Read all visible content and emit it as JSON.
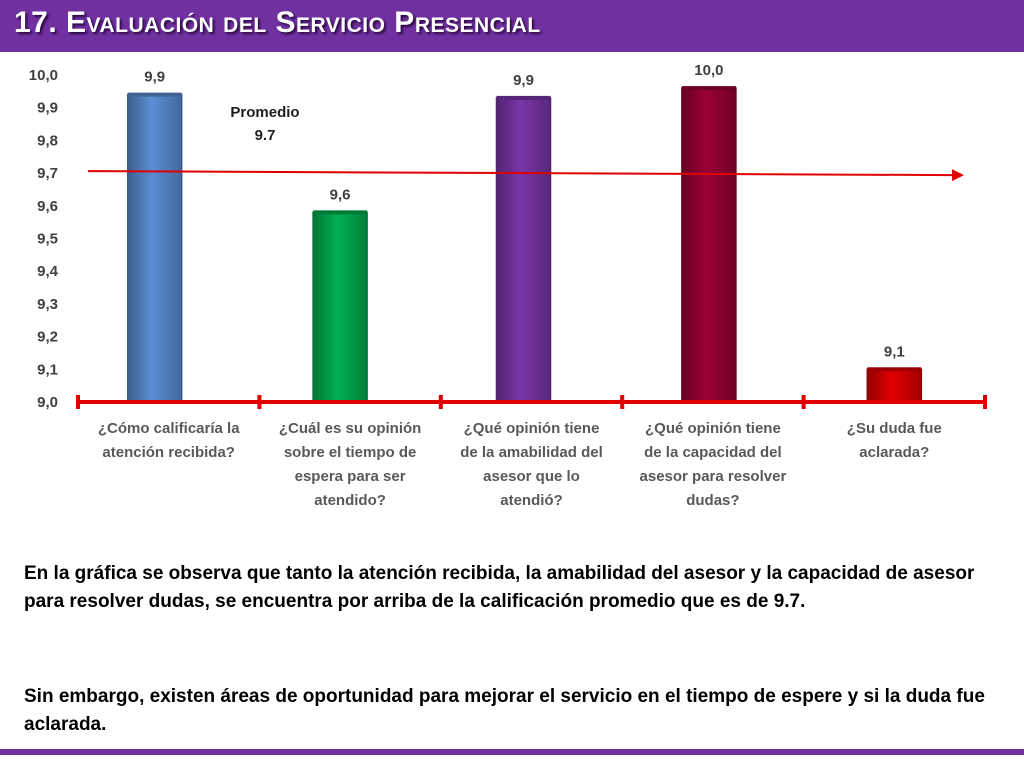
{
  "header": {
    "title": "17. Evaluación del Servicio Presencial",
    "color": "#7030a0"
  },
  "chart_data": {
    "type": "bar",
    "categories": [
      [
        "¿Cómo calificaría la",
        "atención recibida?"
      ],
      [
        "¿Cuál es su opinión",
        "sobre el tiempo de",
        "espera para ser",
        "atendido?"
      ],
      [
        "¿Qué opinión tiene",
        "de la amabilidad del",
        "asesor que lo",
        "atendió?"
      ],
      [
        "¿Qué opinión tiene",
        "de la capacidad del",
        "asesor para resolver",
        "dudas?"
      ],
      [
        "¿Su duda fue",
        "aclarada?"
      ]
    ],
    "values": [
      9.94,
      9.58,
      9.93,
      9.96,
      9.1
    ],
    "value_labels": [
      "9,9",
      "9,6",
      "9,9",
      "10,0",
      "9,1"
    ],
    "colors": [
      "#5b8ed6",
      "#00b050",
      "#7a35a8",
      "#9b0036",
      "#e00000"
    ],
    "ylim": [
      9.0,
      10.0
    ],
    "y_ticks": [
      "9,0",
      "9,1",
      "9,2",
      "9,3",
      "9,4",
      "9,5",
      "9,6",
      "9,7",
      "9,8",
      "9,9",
      "10,0"
    ],
    "average": {
      "value": 9.7,
      "label_line1": "Promedio",
      "label_line2": "9.7",
      "color": "#e00000"
    },
    "axis_color": "#e00000"
  },
  "text": {
    "paragraph1": "En la gráfica se observa que tanto la atención recibida, la amabilidad del asesor y la capacidad de asesor para resolver dudas, se encuentra por arriba de la calificación promedio que es de 9.7.",
    "paragraph2": "Sin embargo, existen áreas de oportunidad para mejorar el servicio en el tiempo de espere y si la duda fue aclarada."
  }
}
